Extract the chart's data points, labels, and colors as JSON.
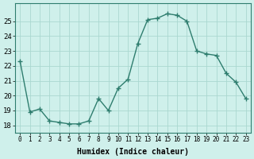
{
  "x": [
    0,
    1,
    2,
    3,
    4,
    5,
    6,
    7,
    8,
    9,
    10,
    11,
    12,
    13,
    14,
    15,
    16,
    17,
    18,
    19,
    20,
    21,
    22,
    23
  ],
  "y": [
    22.3,
    18.9,
    19.1,
    18.3,
    18.2,
    18.1,
    18.1,
    18.3,
    19.8,
    19.0,
    20.5,
    21.1,
    23.5,
    25.1,
    25.2,
    25.5,
    25.4,
    25.0,
    23.0,
    22.8,
    22.7,
    21.5,
    20.9,
    19.8
  ],
  "line_color": "#2e7d6e",
  "marker": "+",
  "marker_size": 4,
  "bg_color": "#cff0eb",
  "grid_color": "#aad8d0",
  "xlabel": "Humidex (Indice chaleur)",
  "ylim": [
    17.5,
    26.2
  ],
  "xlim": [
    -0.5,
    23.5
  ],
  "yticks": [
    18,
    19,
    20,
    21,
    22,
    23,
    24,
    25
  ],
  "xticks": [
    0,
    1,
    2,
    3,
    4,
    5,
    6,
    7,
    8,
    9,
    10,
    11,
    12,
    13,
    14,
    15,
    16,
    17,
    18,
    19,
    20,
    21,
    22,
    23
  ],
  "xtick_labels": [
    "0",
    "1",
    "2",
    "3",
    "4",
    "5",
    "6",
    "7",
    "8",
    "9",
    "10",
    "11",
    "12",
    "13",
    "14",
    "15",
    "16",
    "17",
    "18",
    "19",
    "20",
    "21",
    "22",
    "23"
  ],
  "spine_color": "#2e7d6e",
  "xlabel_fontsize": 7,
  "xlabel_fontweight": "bold",
  "tick_fontsize": 5.5,
  "ytick_fontsize": 6.5,
  "linewidth": 1.0
}
